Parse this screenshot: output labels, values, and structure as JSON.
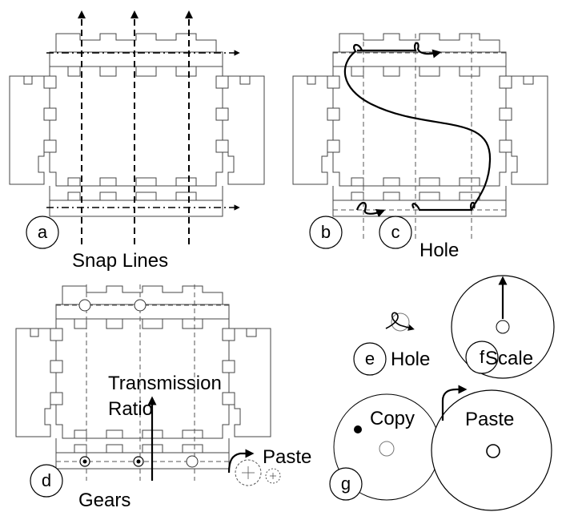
{
  "panels": {
    "a": {
      "marker": "a",
      "caption": "Snap Lines"
    },
    "b": {
      "marker": "b"
    },
    "c": {
      "marker": "c",
      "caption": "Hole"
    },
    "d": {
      "marker": "d",
      "caption": "Gears",
      "annotation_line1": "Transmission",
      "annotation_line2": "Ratio",
      "paste_label": "Paste"
    },
    "e": {
      "marker": "e",
      "caption": "Hole"
    },
    "f": {
      "marker": "f",
      "caption": "Scale"
    },
    "g": {
      "marker": "g",
      "copy_label": "Copy",
      "paste_label": "Paste"
    }
  }
}
